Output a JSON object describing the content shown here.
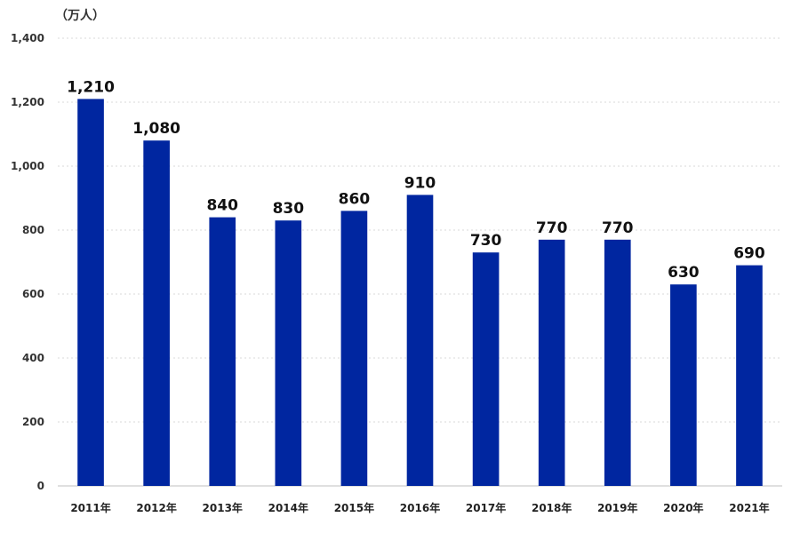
{
  "chart_data": {
    "type": "bar",
    "unit_label": "（万人）",
    "categories": [
      "2011年",
      "2012年",
      "2013年",
      "2014年",
      "2015年",
      "2016年",
      "2017年",
      "2018年",
      "2019年",
      "2020年",
      "2021年"
    ],
    "values": [
      1210,
      1080,
      840,
      830,
      860,
      910,
      730,
      770,
      770,
      630,
      690
    ],
    "value_labels": [
      "1,210",
      "1,080",
      "840",
      "830",
      "860",
      "910",
      "730",
      "770",
      "770",
      "630",
      "690"
    ],
    "ylim": [
      0,
      1400
    ],
    "yticks": [
      0,
      200,
      400,
      600,
      800,
      1000,
      1200,
      1400
    ],
    "ytick_labels": [
      "0",
      "200",
      "400",
      "600",
      "800",
      "1,000",
      "1,200",
      "1,400"
    ],
    "grid": true,
    "bar_color": "#0026A0"
  }
}
